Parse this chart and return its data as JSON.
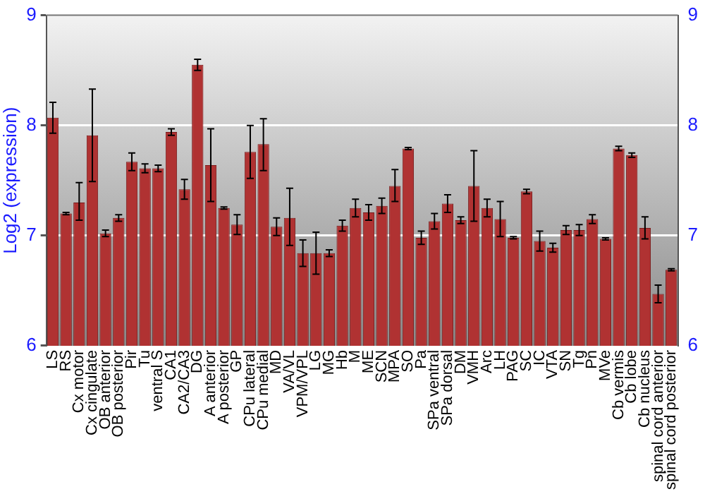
{
  "chart_data": {
    "type": "bar",
    "ylabel": "Log2 (expression)",
    "categories": [
      "LS",
      "RS",
      "Cx motor",
      "Cx cingulate",
      "OB anterior",
      "OB posterior",
      "Pir",
      "Tu",
      "ventral S",
      "CA1",
      "CA2/CA3",
      "DG",
      "A anterior",
      "A posterior",
      "GP",
      "CPu lateral",
      "CPu medial",
      "MD",
      "VA/VL",
      "VPM/VPL",
      "LG",
      "MG",
      "Hb",
      "M",
      "ME",
      "SCN",
      "MPA",
      "SO",
      "Pa",
      "SPa ventral",
      "SPa dorsal",
      "DM",
      "VMH",
      "Arc",
      "LH",
      "PAG",
      "SC",
      "IC",
      "VTA",
      "SN",
      "Tg",
      "Pn",
      "MVe",
      "Cb vermis",
      "Cb lobe",
      "Cb nucleus",
      "spinal cord anterior",
      "spinal cord posterior"
    ],
    "values": [
      8.07,
      7.2,
      7.3,
      7.91,
      7.02,
      7.16,
      7.67,
      7.61,
      7.61,
      7.94,
      7.42,
      8.55,
      7.64,
      7.25,
      7.1,
      7.76,
      7.83,
      7.08,
      7.16,
      6.84,
      6.84,
      6.84,
      7.09,
      7.25,
      7.21,
      7.27,
      7.45,
      7.79,
      6.98,
      7.13,
      7.29,
      7.14,
      7.45,
      7.25,
      7.15,
      6.98,
      7.4,
      6.95,
      6.89,
      7.05,
      7.05,
      7.15,
      6.97,
      7.79,
      7.73,
      7.07,
      6.47,
      6.69
    ],
    "errors": [
      0.14,
      0.01,
      [
        7.14,
        7.48
      ],
      [
        7.49,
        8.33
      ],
      0.03,
      0.03,
      0.08,
      0.04,
      0.03,
      0.03,
      0.09,
      0.05,
      [
        7.31,
        7.97
      ],
      0.01,
      0.09,
      [
        7.52,
        8.0
      ],
      [
        7.59,
        8.06
      ],
      0.08,
      [
        6.91,
        7.43
      ],
      0.12,
      [
        6.65,
        7.03
      ],
      0.03,
      0.05,
      0.08,
      0.07,
      0.07,
      [
        7.31,
        7.6
      ],
      0.01,
      0.06,
      0.07,
      0.08,
      0.03,
      [
        7.13,
        7.77
      ],
      0.08,
      [
        6.99,
        7.31
      ],
      0.01,
      0.02,
      0.09,
      0.04,
      0.04,
      0.05,
      0.04,
      0.01,
      0.02,
      0.02,
      0.1,
      0.08,
      0.01
    ],
    "color": "#b03232",
    "ylim": [
      6,
      9
    ],
    "yticks": [
      6,
      7,
      8,
      9
    ],
    "y2lim": [
      6,
      9
    ],
    "y2ticks": [
      6,
      7,
      8,
      9
    ],
    "grid": "y",
    "legend": false
  }
}
